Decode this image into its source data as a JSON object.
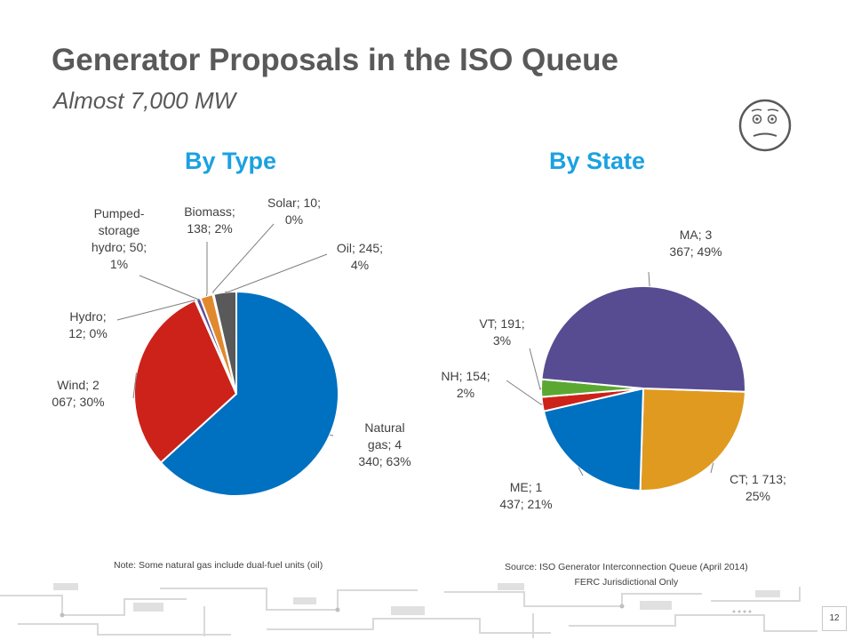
{
  "slide": {
    "title": "Generator Proposals in the ISO Queue",
    "subtitle": "Almost 7,000 MW",
    "page_number": "12",
    "note": "Note: Some natural gas include dual-fuel units (oil)",
    "source_line1": "Source: ISO Generator Interconnection Queue (April 2014)",
    "source_line2": "FERC Jurisdictional Only"
  },
  "chart_data": [
    {
      "type": "pie",
      "title": "By Type",
      "slices": [
        {
          "label": "Natural gas",
          "value": 4340,
          "percent": "63%",
          "color": "#0070c0",
          "label_lines": [
            "Natural",
            "gas; 4",
            "340; 63%"
          ]
        },
        {
          "label": "Wind",
          "value": 2067,
          "percent": "30%",
          "color": "#cc2219",
          "label_lines": [
            "Wind; 2",
            "067; 30%"
          ]
        },
        {
          "label": "Hydro",
          "value": 12,
          "percent": "0%",
          "color": "#8ab34a",
          "label_lines": [
            "Hydro;",
            "12; 0%"
          ]
        },
        {
          "label": "Pumped-storage hydro",
          "value": 50,
          "percent": "1%",
          "color": "#5b4f9a",
          "label_lines": [
            "Pumped-",
            "storage",
            "hydro; 50;",
            "1%"
          ]
        },
        {
          "label": "Biomass",
          "value": 138,
          "percent": "2%",
          "color": "#e0892e",
          "label_lines": [
            "Biomass;",
            "138; 2%"
          ]
        },
        {
          "label": "Solar",
          "value": 10,
          "percent": "0%",
          "color": "#2f9ad0",
          "label_lines": [
            "Solar; 10;",
            "0%"
          ]
        },
        {
          "label": "Oil",
          "value": 245,
          "percent": "4%",
          "color": "#595959",
          "label_lines": [
            "Oil; 245;",
            "4%"
          ]
        }
      ]
    },
    {
      "type": "pie",
      "title": "By State",
      "slices": [
        {
          "label": "CT",
          "value": 1713,
          "percent": "25%",
          "color": "#e09a20",
          "label_lines": [
            "CT; 1 713;",
            "25%"
          ]
        },
        {
          "label": "ME",
          "value": 1437,
          "percent": "21%",
          "color": "#0070c0",
          "label_lines": [
            "ME; 1",
            "437; 21%"
          ]
        },
        {
          "label": "NH",
          "value": 154,
          "percent": "2%",
          "color": "#cc2219",
          "label_lines": [
            "NH; 154;",
            "2%"
          ]
        },
        {
          "label": "VT",
          "value": 191,
          "percent": "3%",
          "color": "#5aa832",
          "label_lines": [
            "VT; 191;",
            "3%"
          ]
        },
        {
          "label": "MA",
          "value": 3367,
          "percent": "49%",
          "color": "#574c91",
          "label_lines": [
            "MA; 3",
            "367; 49%"
          ]
        }
      ]
    }
  ]
}
